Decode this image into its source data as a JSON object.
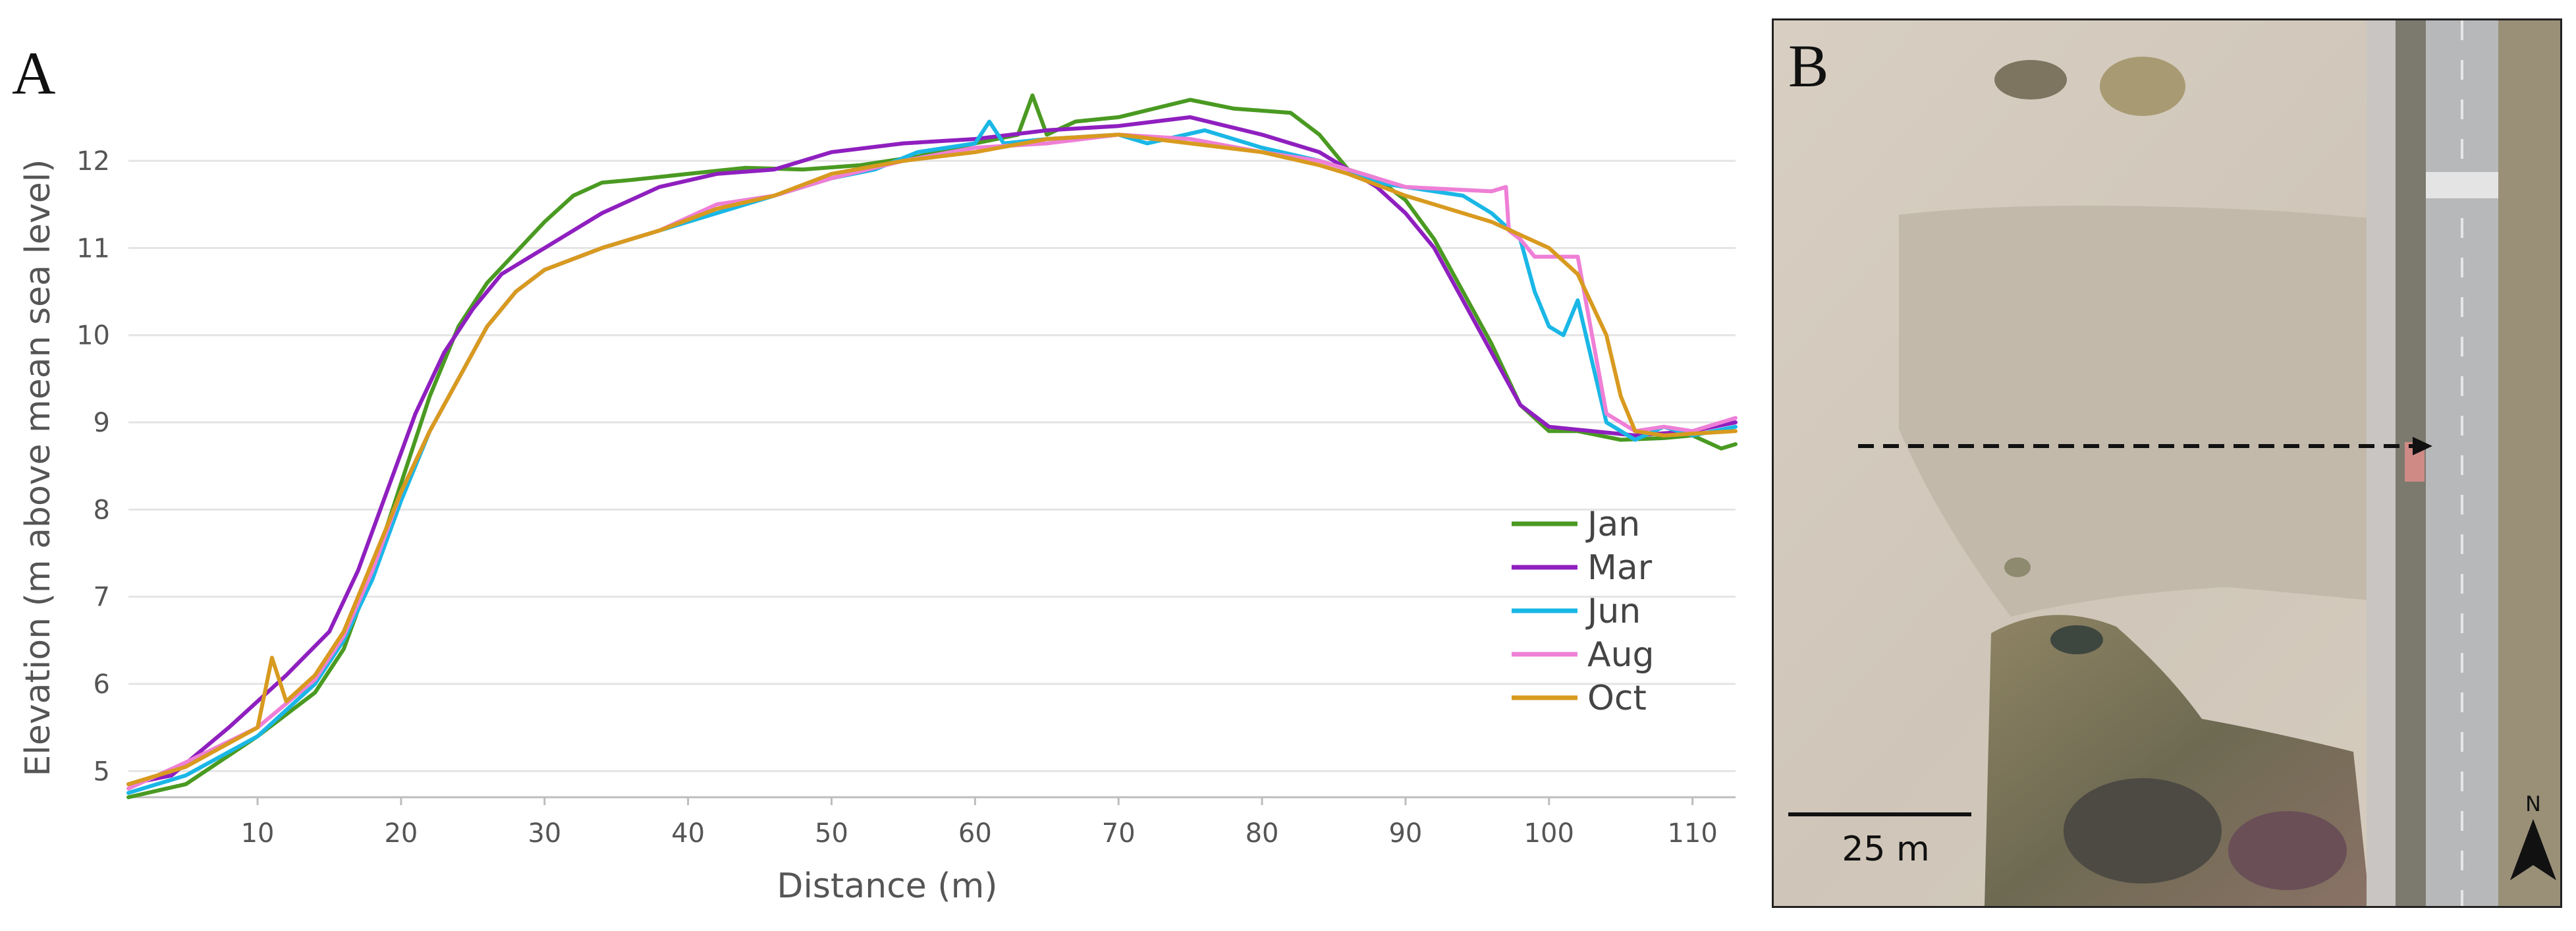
{
  "chart_data": {
    "type": "line",
    "panel_label": "A",
    "xlabel": "Distance (m)",
    "ylabel": "Elevation (m above mean sea level)",
    "xlim": [
      1,
      113
    ],
    "ylim": [
      4.7,
      12.9
    ],
    "xticks": [
      10,
      20,
      30,
      40,
      50,
      60,
      70,
      80,
      90,
      100,
      110
    ],
    "yticks": [
      5,
      6,
      7,
      8,
      9,
      10,
      11,
      12
    ],
    "grid": "horizontal",
    "legend_position": "lower-right",
    "series": [
      {
        "name": "Jan",
        "color": "#4a9a22",
        "points": [
          [
            1,
            4.7
          ],
          [
            5,
            4.85
          ],
          [
            10,
            5.4
          ],
          [
            14,
            5.9
          ],
          [
            16,
            6.4
          ],
          [
            18,
            7.3
          ],
          [
            20,
            8.3
          ],
          [
            22,
            9.3
          ],
          [
            24,
            10.1
          ],
          [
            26,
            10.6
          ],
          [
            28,
            10.95
          ],
          [
            30,
            11.3
          ],
          [
            32,
            11.6
          ],
          [
            34,
            11.75
          ],
          [
            36,
            11.78
          ],
          [
            40,
            11.85
          ],
          [
            44,
            11.92
          ],
          [
            48,
            11.9
          ],
          [
            52,
            11.95
          ],
          [
            56,
            12.05
          ],
          [
            60,
            12.2
          ],
          [
            63,
            12.3
          ],
          [
            64,
            12.75
          ],
          [
            65,
            12.3
          ],
          [
            67,
            12.45
          ],
          [
            70,
            12.5
          ],
          [
            75,
            12.7
          ],
          [
            78,
            12.6
          ],
          [
            82,
            12.55
          ],
          [
            84,
            12.3
          ],
          [
            86,
            11.9
          ],
          [
            88,
            11.8
          ],
          [
            90,
            11.55
          ],
          [
            92,
            11.1
          ],
          [
            94,
            10.5
          ],
          [
            96,
            9.9
          ],
          [
            98,
            9.2
          ],
          [
            100,
            8.9
          ],
          [
            102,
            8.9
          ],
          [
            105,
            8.8
          ],
          [
            108,
            8.82
          ],
          [
            110,
            8.85
          ],
          [
            112,
            8.7
          ],
          [
            113,
            8.75
          ]
        ]
      },
      {
        "name": "Mar",
        "color": "#8f1fbf",
        "points": [
          [
            1,
            4.85
          ],
          [
            4,
            4.95
          ],
          [
            8,
            5.5
          ],
          [
            12,
            6.1
          ],
          [
            15,
            6.6
          ],
          [
            17,
            7.3
          ],
          [
            19,
            8.2
          ],
          [
            21,
            9.1
          ],
          [
            23,
            9.8
          ],
          [
            25,
            10.3
          ],
          [
            27,
            10.7
          ],
          [
            30,
            11.0
          ],
          [
            34,
            11.4
          ],
          [
            38,
            11.7
          ],
          [
            42,
            11.85
          ],
          [
            46,
            11.9
          ],
          [
            50,
            12.1
          ],
          [
            55,
            12.2
          ],
          [
            60,
            12.25
          ],
          [
            65,
            12.35
          ],
          [
            70,
            12.4
          ],
          [
            75,
            12.5
          ],
          [
            80,
            12.3
          ],
          [
            84,
            12.1
          ],
          [
            86,
            11.9
          ],
          [
            88,
            11.7
          ],
          [
            90,
            11.4
          ],
          [
            92,
            11.0
          ],
          [
            94,
            10.4
          ],
          [
            96,
            9.8
          ],
          [
            98,
            9.2
          ],
          [
            100,
            8.95
          ],
          [
            103,
            8.9
          ],
          [
            106,
            8.85
          ],
          [
            110,
            8.9
          ],
          [
            113,
            9.0
          ]
        ]
      },
      {
        "name": "Jun",
        "color": "#1ab7e6",
        "points": [
          [
            1,
            4.75
          ],
          [
            5,
            4.95
          ],
          [
            10,
            5.4
          ],
          [
            14,
            6.0
          ],
          [
            16,
            6.5
          ],
          [
            18,
            7.2
          ],
          [
            20,
            8.1
          ],
          [
            22,
            8.9
          ],
          [
            24,
            9.5
          ],
          [
            26,
            10.1
          ],
          [
            28,
            10.5
          ],
          [
            30,
            10.75
          ],
          [
            34,
            11.0
          ],
          [
            38,
            11.2
          ],
          [
            42,
            11.4
          ],
          [
            46,
            11.6
          ],
          [
            50,
            11.8
          ],
          [
            53,
            11.9
          ],
          [
            56,
            12.1
          ],
          [
            60,
            12.2
          ],
          [
            61,
            12.45
          ],
          [
            62,
            12.2
          ],
          [
            65,
            12.25
          ],
          [
            70,
            12.3
          ],
          [
            72,
            12.2
          ],
          [
            76,
            12.35
          ],
          [
            80,
            12.15
          ],
          [
            84,
            12.0
          ],
          [
            86,
            11.9
          ],
          [
            88,
            11.75
          ],
          [
            90,
            11.7
          ],
          [
            94,
            11.6
          ],
          [
            96,
            11.4
          ],
          [
            98,
            11.1
          ],
          [
            99,
            10.5
          ],
          [
            100,
            10.1
          ],
          [
            101,
            10.0
          ],
          [
            102,
            10.4
          ],
          [
            103,
            9.7
          ],
          [
            104,
            9.0
          ],
          [
            106,
            8.8
          ],
          [
            108,
            8.95
          ],
          [
            110,
            8.85
          ],
          [
            113,
            8.95
          ]
        ]
      },
      {
        "name": "Aug",
        "color": "#ee7fd6",
        "points": [
          [
            1,
            4.8
          ],
          [
            5,
            5.1
          ],
          [
            10,
            5.5
          ],
          [
            14,
            6.05
          ],
          [
            16,
            6.55
          ],
          [
            18,
            7.3
          ],
          [
            20,
            8.2
          ],
          [
            22,
            8.9
          ],
          [
            24,
            9.5
          ],
          [
            26,
            10.1
          ],
          [
            28,
            10.5
          ],
          [
            30,
            10.75
          ],
          [
            34,
            11.0
          ],
          [
            38,
            11.2
          ],
          [
            42,
            11.5
          ],
          [
            46,
            11.6
          ],
          [
            50,
            11.8
          ],
          [
            55,
            12.0
          ],
          [
            60,
            12.15
          ],
          [
            65,
            12.2
          ],
          [
            70,
            12.3
          ],
          [
            75,
            12.25
          ],
          [
            80,
            12.1
          ],
          [
            84,
            12.0
          ],
          [
            86,
            11.9
          ],
          [
            90,
            11.7
          ],
          [
            96,
            11.65
          ],
          [
            97,
            11.7
          ],
          [
            97.2,
            11.2
          ],
          [
            98,
            11.1
          ],
          [
            99,
            10.9
          ],
          [
            102,
            10.9
          ],
          [
            103,
            10.0
          ],
          [
            104,
            9.1
          ],
          [
            106,
            8.9
          ],
          [
            108,
            8.95
          ],
          [
            110,
            8.9
          ],
          [
            113,
            9.05
          ]
        ]
      },
      {
        "name": "Oct",
        "color": "#d89a1f",
        "points": [
          [
            1,
            4.85
          ],
          [
            5,
            5.05
          ],
          [
            10,
            5.5
          ],
          [
            11,
            6.3
          ],
          [
            12,
            5.8
          ],
          [
            14,
            6.1
          ],
          [
            16,
            6.6
          ],
          [
            18,
            7.4
          ],
          [
            20,
            8.2
          ],
          [
            22,
            8.9
          ],
          [
            24,
            9.5
          ],
          [
            26,
            10.1
          ],
          [
            28,
            10.5
          ],
          [
            30,
            10.75
          ],
          [
            34,
            11.0
          ],
          [
            38,
            11.2
          ],
          [
            42,
            11.45
          ],
          [
            46,
            11.6
          ],
          [
            50,
            11.85
          ],
          [
            55,
            12.0
          ],
          [
            60,
            12.1
          ],
          [
            65,
            12.25
          ],
          [
            70,
            12.3
          ],
          [
            75,
            12.2
          ],
          [
            80,
            12.1
          ],
          [
            84,
            11.95
          ],
          [
            86,
            11.85
          ],
          [
            90,
            11.6
          ],
          [
            94,
            11.4
          ],
          [
            96,
            11.3
          ],
          [
            100,
            11.0
          ],
          [
            102,
            10.7
          ],
          [
            104,
            10.0
          ],
          [
            105,
            9.3
          ],
          [
            106,
            8.9
          ],
          [
            108,
            8.85
          ],
          [
            113,
            8.9
          ]
        ]
      }
    ]
  },
  "map": {
    "panel_label": "B",
    "scale_label": "25 m",
    "north_label": "N"
  }
}
